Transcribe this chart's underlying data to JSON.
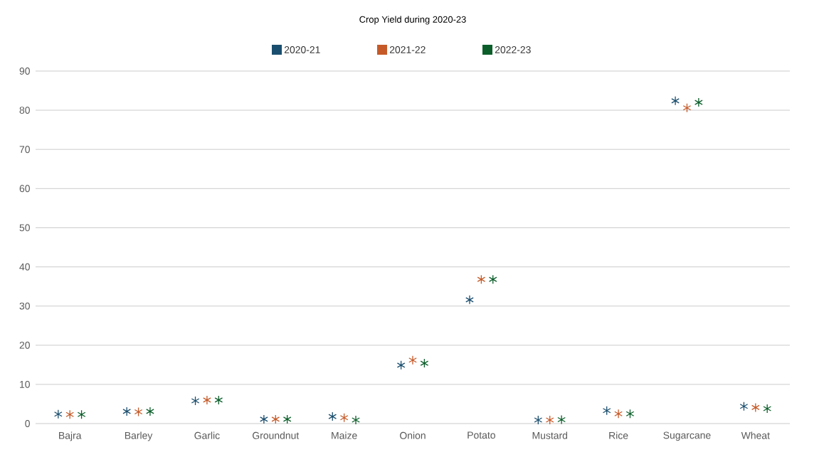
{
  "chart_data": {
    "type": "scatter",
    "title": "Crop Yield during 2020-23",
    "categories": [
      "Bajra",
      "Barley",
      "Garlic",
      "Groundnut",
      "Maize",
      "Onion",
      "Potato",
      "Mustard",
      "Rice",
      "Sugarcane",
      "Wheat"
    ],
    "series": [
      {
        "name": "2020-21",
        "color": "#1a4e6e",
        "values": [
          2.4,
          3.1,
          5.8,
          1.1,
          1.8,
          14.9,
          31.6,
          0.9,
          3.3,
          82.4,
          4.4
        ]
      },
      {
        "name": "2021-22",
        "color": "#c55a28",
        "values": [
          2.3,
          3.0,
          6.0,
          1.1,
          1.5,
          16.2,
          36.8,
          0.9,
          2.5,
          80.6,
          4.1
        ]
      },
      {
        "name": "2022-23",
        "color": "#0b5e2a",
        "values": [
          2.3,
          3.1,
          6.0,
          1.1,
          0.9,
          15.4,
          36.8,
          1.0,
          2.5,
          82.0,
          3.8
        ]
      }
    ],
    "ylim": [
      0,
      90
    ],
    "yticks": [
      0,
      10,
      20,
      30,
      40,
      50,
      60,
      70,
      80,
      90
    ],
    "grid": "y",
    "legend": "top",
    "marker": "cross"
  }
}
